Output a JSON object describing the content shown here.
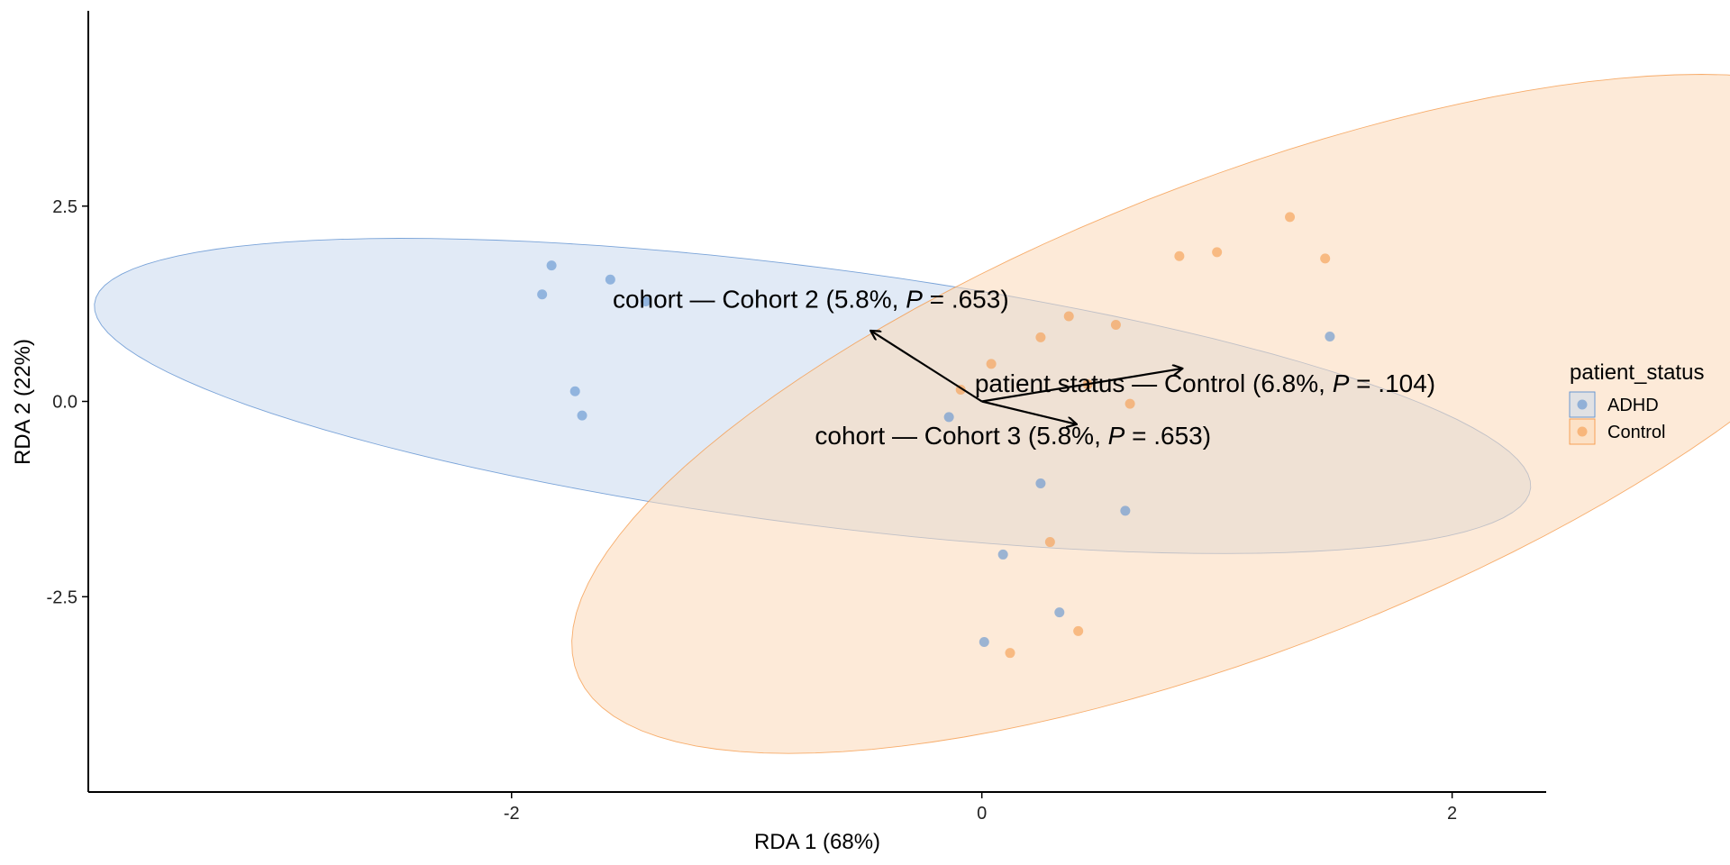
{
  "chart_data": {
    "type": "scatter",
    "xlabel": "RDA 1 (68%)",
    "ylabel": "RDA 2 (22%)",
    "xlim": [
      -3.8,
      2.4
    ],
    "ylim": [
      -5.0,
      5.0
    ],
    "xticks": [
      -2,
      0,
      2
    ],
    "xtick_labels": [
      "-2",
      "0",
      "2"
    ],
    "yticks": [
      2.5,
      0.0,
      -2.5
    ],
    "ytick_labels": [
      "2.5",
      "0.0",
      "-2.5"
    ],
    "grid": false,
    "legend": {
      "title": "patient_status",
      "placement": "right",
      "entries": [
        {
          "name": "ADHD",
          "color": "#5b8fcf",
          "fill": "#c9d8ee"
        },
        {
          "name": "Control",
          "color": "#f59a4a",
          "fill": "#fbd9b8"
        }
      ]
    },
    "series": [
      {
        "name": "ADHD",
        "color": "#5b8fcf",
        "ellipse_fill": "#c9d8ee",
        "ellipse": {
          "center": [
            -0.72,
            0.07
          ],
          "semi_major": 3.33,
          "semi_minor": 1.52,
          "angle_deg": -26.6
        },
        "points": [
          {
            "x": -1.83,
            "y": 1.74
          },
          {
            "x": -1.87,
            "y": 1.37
          },
          {
            "x": -1.58,
            "y": 1.56
          },
          {
            "x": -1.43,
            "y": 1.28
          },
          {
            "x": -1.73,
            "y": 0.13
          },
          {
            "x": -1.7,
            "y": -0.18
          },
          {
            "x": -0.14,
            "y": -0.2
          },
          {
            "x": 0.25,
            "y": -1.05
          },
          {
            "x": 0.61,
            "y": -1.4
          },
          {
            "x": 0.09,
            "y": -1.96
          },
          {
            "x": 0.33,
            "y": -2.7
          },
          {
            "x": 0.01,
            "y": -3.08
          },
          {
            "x": 1.48,
            "y": 0.83
          }
        ]
      },
      {
        "name": "Control",
        "color": "#f59a4a",
        "ellipse_fill": "#fbd9b8",
        "ellipse": {
          "center": [
            1.12,
            -0.16
          ],
          "semi_major": 4.85,
          "semi_minor": 1.89,
          "angle_deg": 61.2
        },
        "points": [
          {
            "x": 0.84,
            "y": 1.86
          },
          {
            "x": 1.0,
            "y": 1.91
          },
          {
            "x": 1.31,
            "y": 2.36
          },
          {
            "x": 1.46,
            "y": 1.83
          },
          {
            "x": 0.37,
            "y": 1.09
          },
          {
            "x": 0.57,
            "y": 0.98
          },
          {
            "x": 0.25,
            "y": 0.82
          },
          {
            "x": 0.04,
            "y": 0.48
          },
          {
            "x": -0.09,
            "y": 0.15
          },
          {
            "x": 0.45,
            "y": 0.22
          },
          {
            "x": 0.63,
            "y": -0.03
          },
          {
            "x": 0.29,
            "y": -1.8
          },
          {
            "x": 0.41,
            "y": -2.94
          },
          {
            "x": 0.12,
            "y": -3.22
          }
        ]
      }
    ],
    "arrows": [
      {
        "label_parts": [
          "cohort — Cohort 2 (5.8%, ",
          "P",
          " = .653)"
        ],
        "from": [
          0,
          0
        ],
        "to": [
          -0.47,
          0.9
        ],
        "label_at": [
          -1.57,
          1.2
        ],
        "anchor": "start"
      },
      {
        "label_parts": [
          "cohort — Cohort 3 (5.8%, ",
          "P",
          " = .653)"
        ],
        "from": [
          0,
          0
        ],
        "to": [
          0.4,
          -0.29
        ],
        "label_at": [
          -0.71,
          -0.55
        ],
        "anchor": "start"
      },
      {
        "label_parts": [
          "patient status — Control (6.8%, ",
          "P",
          " = .104)"
        ],
        "from": [
          0,
          0
        ],
        "to": [
          0.85,
          0.42
        ],
        "label_at": [
          -0.03,
          0.12
        ],
        "anchor": "start"
      }
    ]
  }
}
